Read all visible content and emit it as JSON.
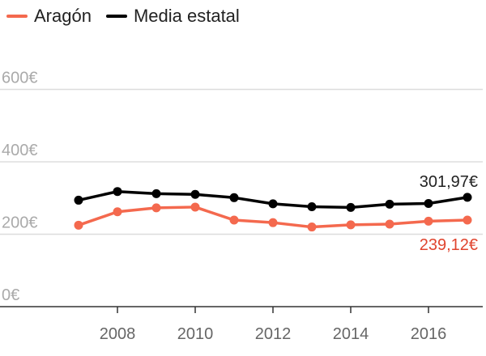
{
  "legend": {
    "items": [
      {
        "label": "Aragón",
        "color": "#f4694e"
      },
      {
        "label": "Media estatal",
        "color": "#000000"
      }
    ]
  },
  "chart_data": {
    "type": "line",
    "x": [
      2007,
      2008,
      2009,
      2010,
      2011,
      2012,
      2013,
      2014,
      2015,
      2016,
      2017
    ],
    "x_ticks": [
      "2008",
      "2010",
      "2012",
      "2014",
      "2016"
    ],
    "y_ticks": [
      "0€",
      "200€",
      "400€",
      "600€"
    ],
    "ylim": [
      0,
      650
    ],
    "grid": "horizontal",
    "legend_position": "top-left",
    "series": [
      {
        "name": "Aragón",
        "color": "#f4694e",
        "values": [
          225,
          262,
          273,
          275,
          239,
          232,
          220,
          226,
          228,
          236,
          239.12
        ],
        "end_label": "239,12€"
      },
      {
        "name": "Media estatal",
        "color": "#000000",
        "values": [
          294,
          318,
          312,
          310,
          301,
          284,
          276,
          274,
          283,
          285,
          301.97
        ],
        "end_label": "301,97€"
      }
    ]
  }
}
